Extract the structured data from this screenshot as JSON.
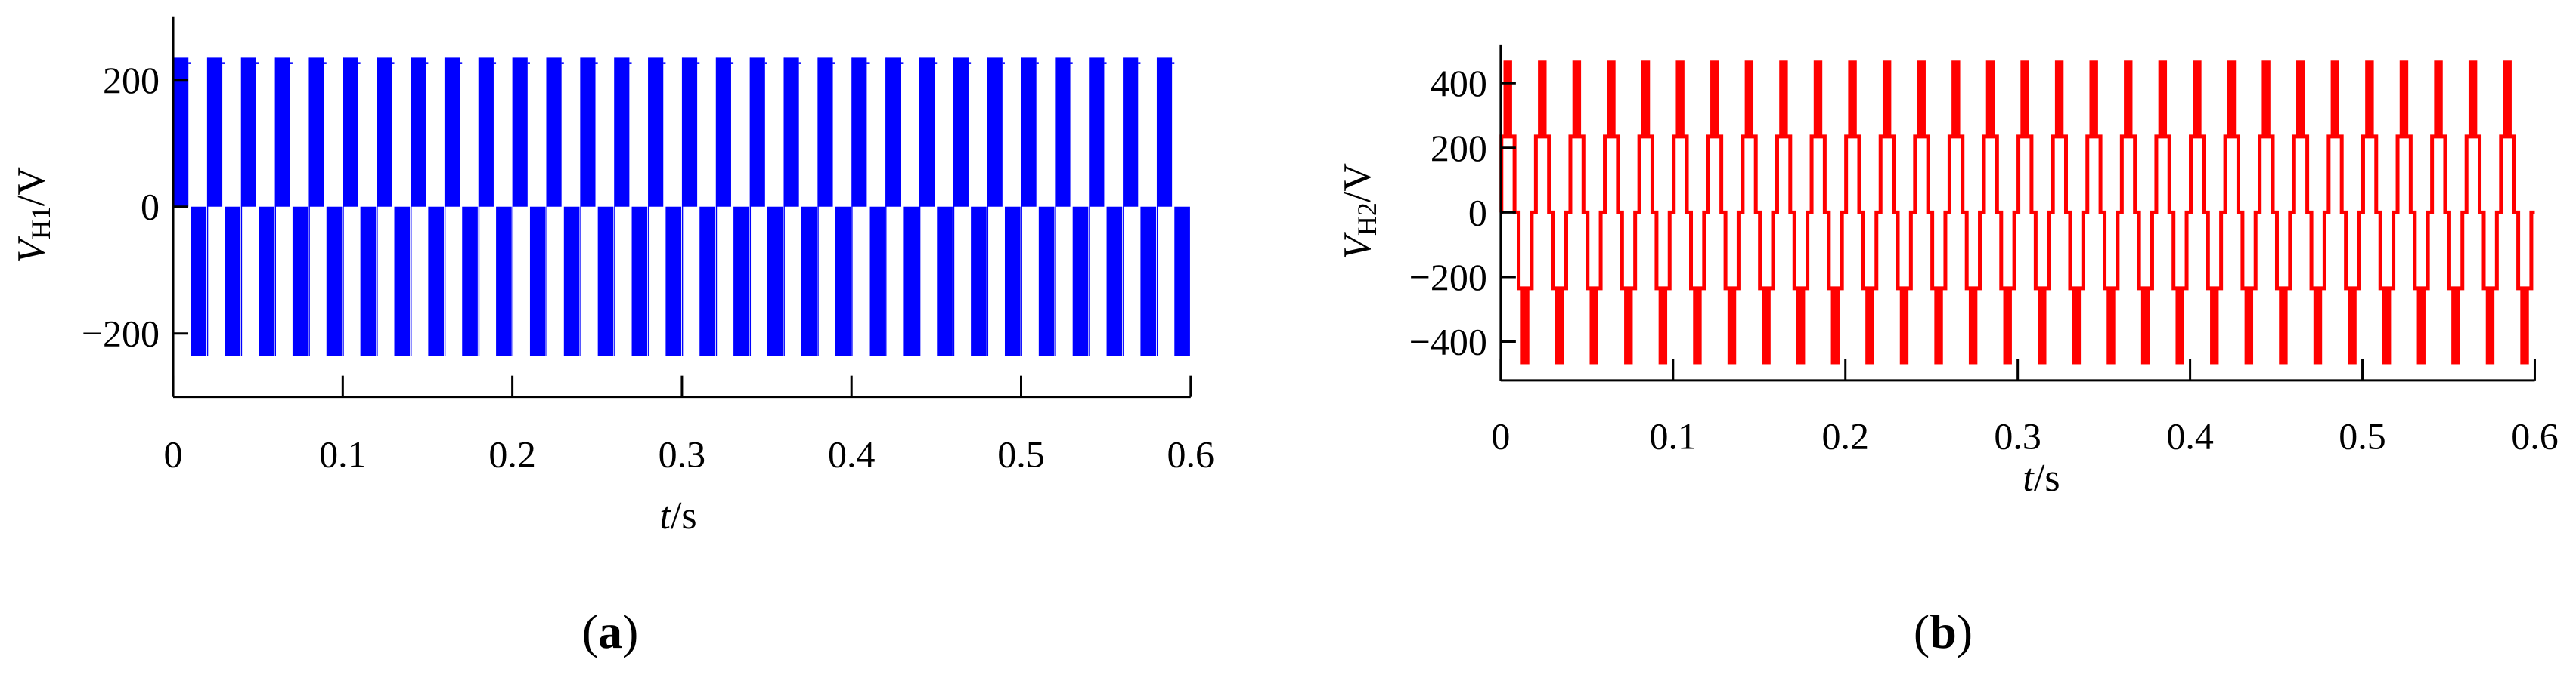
{
  "chart_data": [
    {
      "id": "a",
      "type": "line",
      "panel_label": "a",
      "color": "#0000ff",
      "xlabel": {
        "var": "t",
        "unit": "/s"
      },
      "ylabel": {
        "var": "V",
        "sub": "H1",
        "unit": "/V"
      },
      "xlim": [
        0,
        0.6
      ],
      "ylim": [
        -300,
        300
      ],
      "x_ticks": [
        0,
        0.1,
        0.2,
        0.3,
        0.4,
        0.5,
        0.6
      ],
      "x_tick_labels": [
        "0",
        "0.1",
        "0.2",
        "0.3",
        "0.4",
        "0.5",
        "0.6"
      ],
      "y_ticks": [
        -200,
        0,
        200
      ],
      "y_tick_labels": [
        "−200",
        "0",
        "200"
      ],
      "grid": false,
      "series": [
        {
          "waveform": "PWM square wave",
          "levels": [
            -235,
            0,
            235
          ],
          "period_s": 0.02,
          "t_start": 0,
          "t_end": 0.6,
          "cycles": 30
        }
      ]
    },
    {
      "id": "b",
      "type": "line",
      "panel_label": "b",
      "color": "#ff0000",
      "xlabel": {
        "var": "t",
        "unit": "/s"
      },
      "ylabel": {
        "var": "V",
        "sub": "H2",
        "unit": "/V"
      },
      "xlim": [
        0,
        0.6
      ],
      "ylim": [
        -520,
        520
      ],
      "x_ticks": [
        0,
        0.1,
        0.2,
        0.3,
        0.4,
        0.5,
        0.6
      ],
      "x_tick_labels": [
        "0",
        "0.1",
        "0.2",
        "0.3",
        "0.4",
        "0.5",
        "0.6"
      ],
      "y_ticks": [
        -400,
        -200,
        0,
        200,
        400
      ],
      "y_tick_labels": [
        "−400",
        "−200",
        "0",
        "200",
        "400"
      ],
      "grid": false,
      "series": [
        {
          "waveform": "five-level staircase PWM",
          "levels": [
            -470,
            -235,
            0,
            235,
            470
          ],
          "period_s": 0.02,
          "t_start": 0,
          "t_end": 0.6,
          "cycles": 30
        }
      ]
    }
  ]
}
